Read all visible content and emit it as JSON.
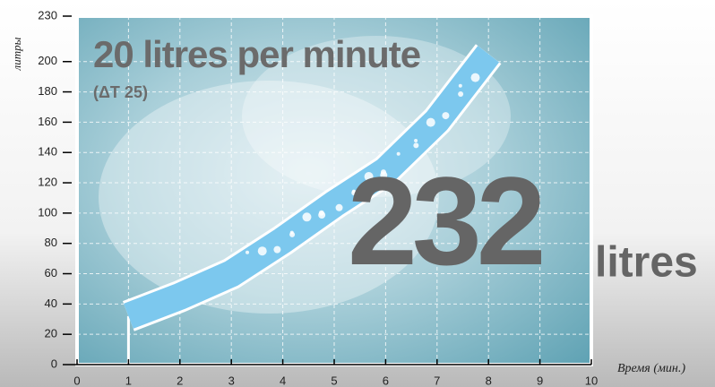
{
  "chart_data": {
    "type": "line",
    "title": "20 litres per minute",
    "subtitle": "(ΔT 25)",
    "annotations": [
      "232",
      "litres"
    ],
    "ylabel": "литры",
    "xlabel": "Время (мин.)",
    "x": [
      1,
      2,
      3,
      4,
      5,
      6,
      7,
      8
    ],
    "values": [
      32,
      45,
      60,
      82,
      106,
      128,
      161,
      205
    ],
    "color": "#7cc8ee",
    "xlim": [
      0,
      10
    ],
    "xticks": [
      0,
      1,
      2,
      3,
      4,
      5,
      6,
      7,
      8,
      9,
      10
    ],
    "ylim": [
      0,
      230
    ],
    "yticks": [
      0,
      20,
      40,
      60,
      80,
      100,
      120,
      140,
      160,
      180,
      200,
      230
    ],
    "grid": true
  }
}
